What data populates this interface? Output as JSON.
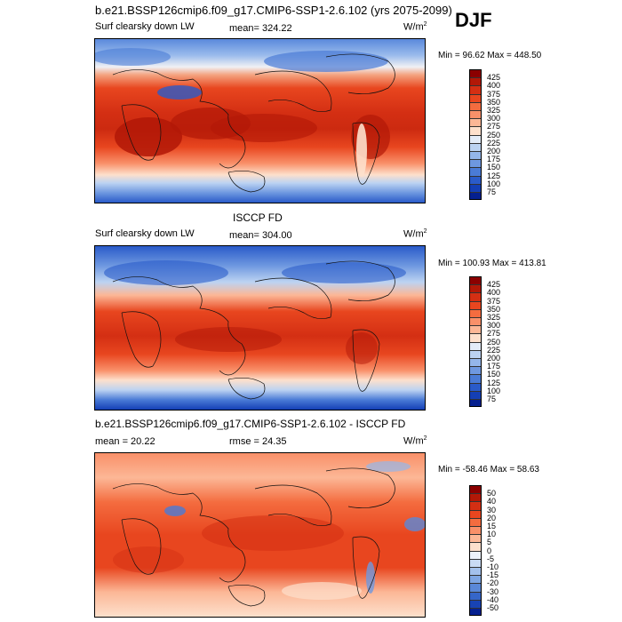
{
  "header": {
    "model_title": "b.e21.BSSP126cmip6.f09_g17.CMIP6-SSP1-2.6.102 (yrs 2075-2099)",
    "season": "DJF"
  },
  "panels": [
    {
      "id": "model",
      "left_label": "Surf clearsky down LW",
      "center_label": "mean= 324.22",
      "unit_label": "W/m",
      "unit_sup": "2",
      "minmax": "Min =  96.62 Max = 448.50",
      "levels": [
        "425",
        "400",
        "375",
        "350",
        "325",
        "300",
        "275",
        "250",
        "225",
        "200",
        "175",
        "150",
        "125",
        "100",
        "75"
      ],
      "colors": [
        "#8b0000",
        "#b21807",
        "#d42f13",
        "#e8461f",
        "#f46c3f",
        "#f99069",
        "#fcb796",
        "#fde0cc",
        "#e3ecf8",
        "#bcd3f2",
        "#94b6ea",
        "#6e98e0",
        "#4a7bd6",
        "#2a5bc9",
        "#143fb5",
        "#05208f"
      ]
    },
    {
      "id": "obs",
      "heading": "ISCCP FD",
      "left_label": "Surf clearsky down LW",
      "center_label": "mean= 304.00",
      "unit_label": "W/m",
      "unit_sup": "2",
      "minmax": "Min = 100.93 Max = 413.81",
      "levels": [
        "425",
        "400",
        "375",
        "350",
        "325",
        "300",
        "275",
        "250",
        "225",
        "200",
        "175",
        "150",
        "125",
        "100",
        "75"
      ],
      "colors": [
        "#8b0000",
        "#b21807",
        "#d42f13",
        "#e8461f",
        "#f46c3f",
        "#f99069",
        "#fcb796",
        "#fde0cc",
        "#e3ecf8",
        "#bcd3f2",
        "#94b6ea",
        "#6e98e0",
        "#4a7bd6",
        "#2a5bc9",
        "#143fb5",
        "#05208f"
      ]
    },
    {
      "id": "diff",
      "heading": "b.e21.BSSP126cmip6.f09_g17.CMIP6-SSP1-2.6.102 - ISCCP FD",
      "left_label": "mean =  20.22",
      "center_label": "rmse =  24.35",
      "unit_label": "W/m",
      "unit_sup": "2",
      "minmax": "Min = -58.46 Max =  58.63",
      "levels": [
        "50",
        "40",
        "30",
        "20",
        "15",
        "10",
        "5",
        "0",
        "-5",
        "-10",
        "-15",
        "-20",
        "-30",
        "-40",
        "-50"
      ],
      "colors": [
        "#8b0000",
        "#b21807",
        "#d42f13",
        "#e8461f",
        "#f46c3f",
        "#f99069",
        "#fcb796",
        "#fde0cc",
        "#eef3fb",
        "#c9dbf4",
        "#a3c1ec",
        "#7ea6e3",
        "#5a88d8",
        "#3566c9",
        "#1843b3",
        "#05208f"
      ]
    }
  ]
}
